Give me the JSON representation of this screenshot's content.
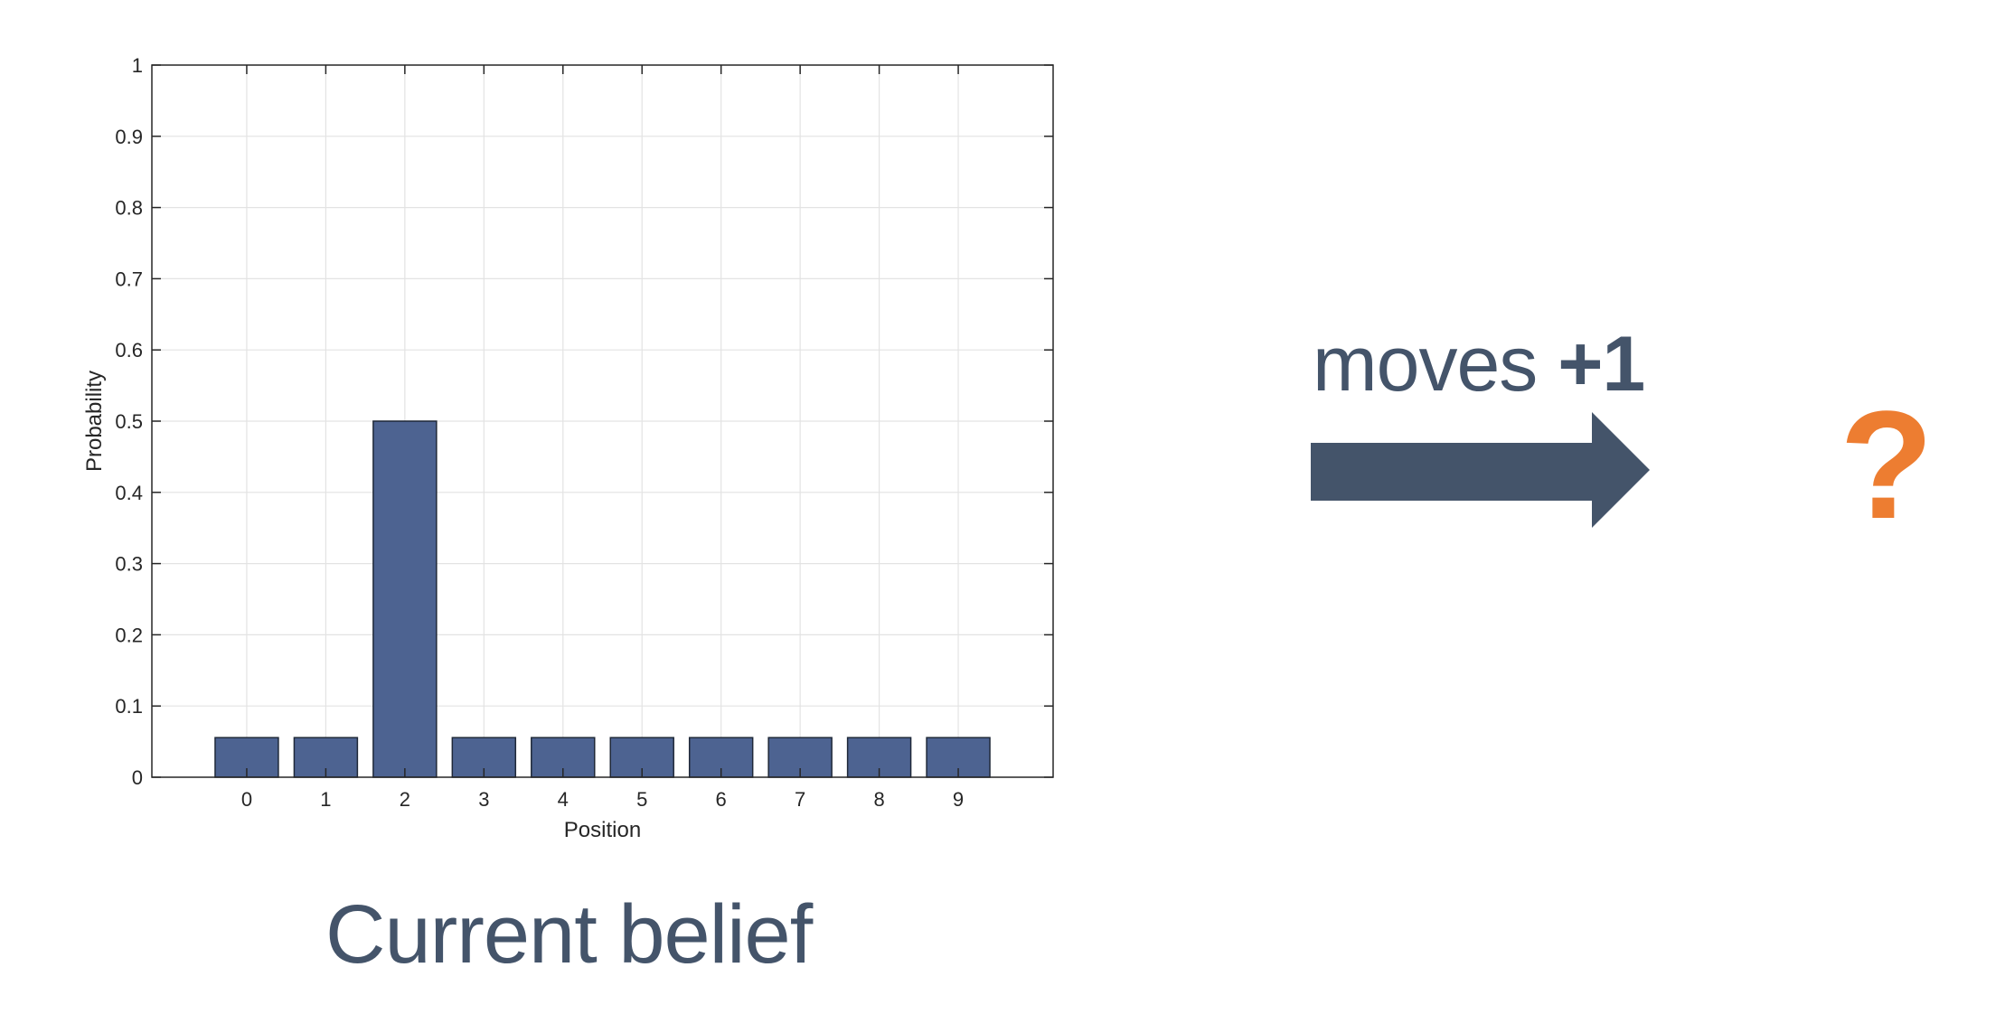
{
  "chart_data": {
    "type": "bar",
    "categories": [
      "0",
      "1",
      "2",
      "3",
      "4",
      "5",
      "6",
      "7",
      "8",
      "9"
    ],
    "values": [
      0.0556,
      0.0556,
      0.5,
      0.0556,
      0.0556,
      0.0556,
      0.0556,
      0.0556,
      0.0556,
      0.0556
    ],
    "xlabel": "Position",
    "ylabel": "Probability",
    "ylim": [
      0,
      1
    ],
    "xlim": [
      -1.2,
      10.2
    ],
    "yticks": [
      "0",
      "0.1",
      "0.2",
      "0.3",
      "0.4",
      "0.5",
      "0.6",
      "0.7",
      "0.8",
      "0.9",
      "1"
    ],
    "grid": true,
    "bar_color": "#4d6391",
    "bar_edge_color": "#1f2838"
  },
  "caption": "Current belief",
  "transition": {
    "verb": "moves",
    "amount": "+1",
    "arrow_color": "#44546a"
  },
  "result": {
    "symbol": "?",
    "color": "#ed7d31"
  }
}
